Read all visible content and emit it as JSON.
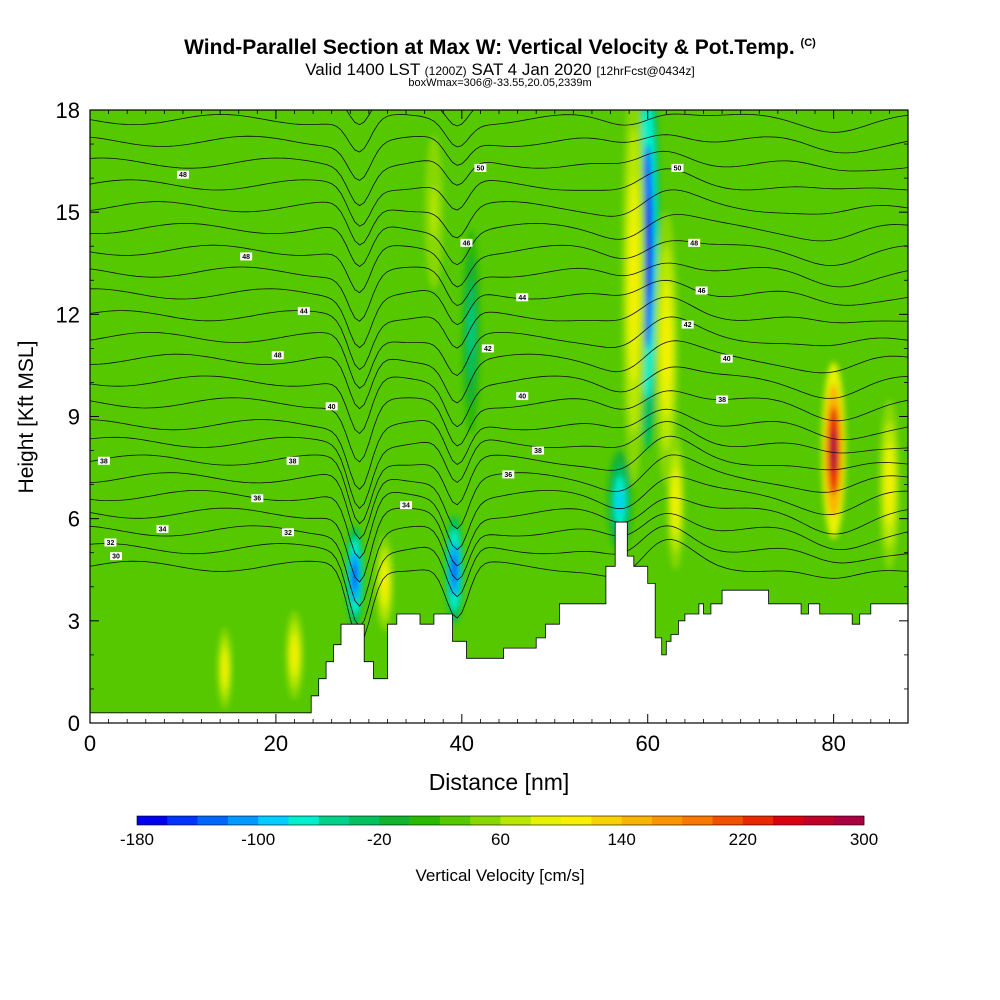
{
  "header": {
    "title": "Wind-Parallel Section at Max W: Vertical Velocity & Pot.Temp.",
    "copyright": "(C)",
    "valid_main": "Valid 1400 LST",
    "valid_utc": "(1200Z)",
    "valid_date": "SAT 4 Jan 2020",
    "forecast": "[12hrFcst@0434z]",
    "box_info": "boxWmax=306@-33.55,20.05,2339m"
  },
  "chart_data": {
    "type": "heatmap",
    "xlabel": "Distance [nm]",
    "ylabel": "Height [Kft MSL]",
    "xlim": [
      0,
      88
    ],
    "ylim": [
      0,
      18
    ],
    "x_ticks": [
      "0",
      "20",
      "40",
      "60",
      "80"
    ],
    "x_tick_values": [
      0,
      20,
      40,
      60,
      80
    ],
    "y_ticks": [
      "0",
      "3",
      "6",
      "9",
      "12",
      "15",
      "18"
    ],
    "y_tick_values": [
      0,
      3,
      6,
      9,
      12,
      15,
      18
    ],
    "colorbar": {
      "label": "Vertical Velocity [cm/s]",
      "min": -180,
      "max": 300,
      "tick_labels": [
        "-180",
        "-100",
        "-20",
        "60",
        "140",
        "220",
        "300"
      ],
      "colors": [
        "#0000ee",
        "#0033ff",
        "#0066ff",
        "#0099ff",
        "#00ccff",
        "#00eecc",
        "#00d08a",
        "#00c060",
        "#12b230",
        "#2cb800",
        "#55c800",
        "#88d800",
        "#b8e800",
        "#e8f200",
        "#f8f000",
        "#f8d200",
        "#f8b400",
        "#f89600",
        "#f87800",
        "#f05000",
        "#e82800",
        "#d80010",
        "#c00028",
        "#a80040"
      ]
    },
    "terrain": [
      [
        0,
        0.3
      ],
      [
        3,
        0.3
      ],
      [
        3,
        0.3
      ],
      [
        23.8,
        0.3
      ],
      [
        23.8,
        0.8
      ],
      [
        24.6,
        0.8
      ],
      [
        24.6,
        1.3
      ],
      [
        25.4,
        1.3
      ],
      [
        25.4,
        1.8
      ],
      [
        26.2,
        1.8
      ],
      [
        26.2,
        2.3
      ],
      [
        27,
        2.3
      ],
      [
        27,
        2.9
      ],
      [
        29.5,
        2.9
      ],
      [
        29.5,
        1.8
      ],
      [
        30.5,
        1.8
      ],
      [
        30.5,
        1.3
      ],
      [
        32,
        1.3
      ],
      [
        32,
        2.9
      ],
      [
        33,
        2.9
      ],
      [
        33,
        3.2
      ],
      [
        35.5,
        3.2
      ],
      [
        35.5,
        2.9
      ],
      [
        37,
        2.9
      ],
      [
        37,
        3.2
      ],
      [
        39,
        3.2
      ],
      [
        39,
        2.4
      ],
      [
        40.5,
        2.4
      ],
      [
        40.5,
        1.9
      ],
      [
        44.5,
        1.9
      ],
      [
        44.5,
        2.2
      ],
      [
        48,
        2.2
      ],
      [
        48,
        2.5
      ],
      [
        49,
        2.5
      ],
      [
        49,
        2.9
      ],
      [
        50.5,
        2.9
      ],
      [
        50.5,
        3.5
      ],
      [
        55.5,
        3.5
      ],
      [
        55.5,
        4.6
      ],
      [
        56.5,
        4.6
      ],
      [
        56.5,
        5.9
      ],
      [
        57.8,
        5.9
      ],
      [
        57.8,
        4.9
      ],
      [
        58.5,
        4.9
      ],
      [
        58.5,
        4.6
      ],
      [
        60,
        4.6
      ],
      [
        60,
        4.1
      ],
      [
        60.8,
        4.1
      ],
      [
        60.8,
        2.5
      ],
      [
        61.5,
        2.5
      ],
      [
        61.5,
        2.0
      ],
      [
        62,
        2.0
      ],
      [
        62,
        2.4
      ],
      [
        62.5,
        2.4
      ],
      [
        62.5,
        2.6
      ],
      [
        63.3,
        2.6
      ],
      [
        63.3,
        3.0
      ],
      [
        64,
        3.0
      ],
      [
        64,
        3.2
      ],
      [
        65.5,
        3.2
      ],
      [
        65.5,
        3.5
      ],
      [
        66,
        3.5
      ],
      [
        66,
        3.2
      ],
      [
        66.8,
        3.2
      ],
      [
        66.8,
        3.5
      ],
      [
        68,
        3.5
      ],
      [
        68,
        3.9
      ],
      [
        73,
        3.9
      ],
      [
        73,
        3.5
      ],
      [
        76.5,
        3.5
      ],
      [
        76.5,
        3.2
      ],
      [
        77.3,
        3.2
      ],
      [
        77.3,
        3.5
      ],
      [
        78.5,
        3.5
      ],
      [
        78.5,
        3.2
      ],
      [
        82,
        3.2
      ],
      [
        82,
        2.9
      ],
      [
        82.8,
        2.9
      ],
      [
        82.8,
        3.2
      ],
      [
        84,
        3.2
      ],
      [
        84,
        3.5
      ],
      [
        88,
        3.5
      ],
      [
        88,
        0
      ]
    ],
    "background_velocity": 20,
    "velocity_features": [
      {
        "x": 60,
        "y": 14,
        "sx": 0.8,
        "sy": 6,
        "value": -180
      },
      {
        "x": 58.5,
        "y": 13,
        "sx": 0.8,
        "sy": 6,
        "value": 110
      },
      {
        "x": 62,
        "y": 11,
        "sx": 0.8,
        "sy": 4,
        "value": 110
      },
      {
        "x": 80,
        "y": 8,
        "sx": 0.8,
        "sy": 2.6,
        "value": 290
      },
      {
        "x": 28.5,
        "y": 4.3,
        "sx": 0.6,
        "sy": 1.5,
        "value": -150
      },
      {
        "x": 39.2,
        "y": 4.5,
        "sx": 0.6,
        "sy": 1.6,
        "value": -150
      },
      {
        "x": 31.7,
        "y": 4.1,
        "sx": 0.6,
        "sy": 1.4,
        "value": 100
      },
      {
        "x": 14.5,
        "y": 1.6,
        "sx": 0.5,
        "sy": 1.2,
        "value": 110
      },
      {
        "x": 22,
        "y": 2.0,
        "sx": 0.6,
        "sy": 1.3,
        "value": 110
      },
      {
        "x": 57,
        "y": 6.5,
        "sx": 0.8,
        "sy": 1.5,
        "value": -100
      },
      {
        "x": 63,
        "y": 6.5,
        "sx": 0.6,
        "sy": 2.0,
        "value": 100
      },
      {
        "x": 86,
        "y": 7,
        "sx": 0.7,
        "sy": 2.5,
        "value": 100
      },
      {
        "x": 41,
        "y": 11.5,
        "sx": 0.6,
        "sy": 3,
        "value": -60
      },
      {
        "x": 37,
        "y": 15,
        "sx": 0.8,
        "sy": 3,
        "value": 70
      }
    ],
    "isentrope_labels": [
      {
        "x": 10,
        "y": 16.1,
        "text": "48"
      },
      {
        "x": 16.8,
        "y": 13.7,
        "text": "48"
      },
      {
        "x": 23,
        "y": 12.1,
        "text": "44"
      },
      {
        "x": 20.2,
        "y": 10.8,
        "text": "48"
      },
      {
        "x": 26,
        "y": 9.3,
        "text": "40"
      },
      {
        "x": 21.8,
        "y": 7.7,
        "text": "38"
      },
      {
        "x": 1.5,
        "y": 7.7,
        "text": "38"
      },
      {
        "x": 18,
        "y": 6.6,
        "text": "36"
      },
      {
        "x": 7.8,
        "y": 5.7,
        "text": "34"
      },
      {
        "x": 21.3,
        "y": 5.6,
        "text": "32"
      },
      {
        "x": 2.2,
        "y": 5.3,
        "text": "32"
      },
      {
        "x": 2.8,
        "y": 4.9,
        "text": "30"
      },
      {
        "x": 42,
        "y": 16.3,
        "text": "50"
      },
      {
        "x": 40.5,
        "y": 14.1,
        "text": "46"
      },
      {
        "x": 46.5,
        "y": 12.5,
        "text": "44"
      },
      {
        "x": 42.8,
        "y": 11.0,
        "text": "42"
      },
      {
        "x": 46.5,
        "y": 9.6,
        "text": "40"
      },
      {
        "x": 48.2,
        "y": 8.0,
        "text": "38"
      },
      {
        "x": 45,
        "y": 7.3,
        "text": "36"
      },
      {
        "x": 34,
        "y": 6.4,
        "text": "34"
      },
      {
        "x": 63.2,
        "y": 16.3,
        "text": "50"
      },
      {
        "x": 65,
        "y": 14.1,
        "text": "48"
      },
      {
        "x": 65.8,
        "y": 12.7,
        "text": "46"
      },
      {
        "x": 64.3,
        "y": 11.7,
        "text": "42"
      },
      {
        "x": 68.5,
        "y": 10.7,
        "text": "40"
      },
      {
        "x": 68,
        "y": 9.5,
        "text": "38"
      }
    ]
  }
}
